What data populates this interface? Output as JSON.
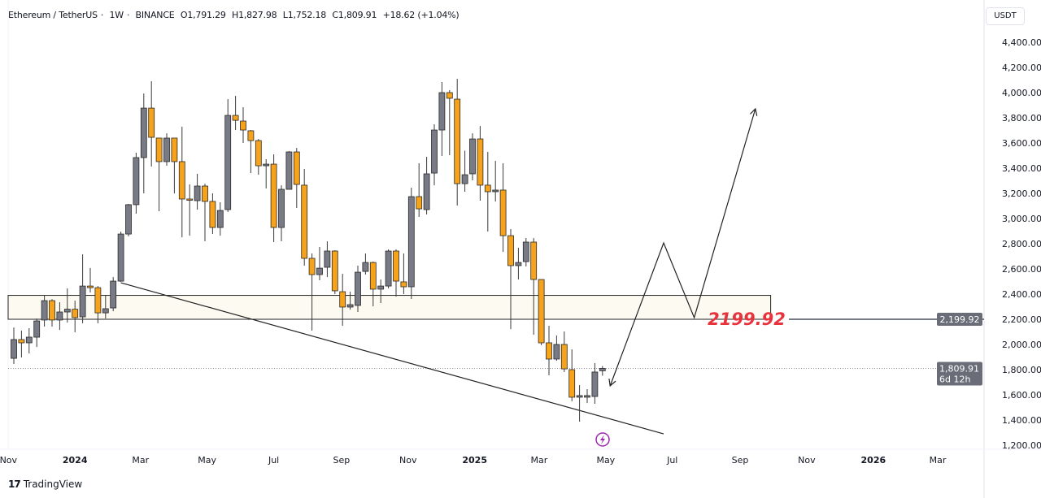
{
  "legend": {
    "symbol": "Ethereum / TetherUS",
    "interval": "1W",
    "exchange": "BINANCE",
    "open": "O1,791.29",
    "high": "H1,827.98",
    "low": "L1,752.18",
    "close": "C1,809.91",
    "change": "+18.62 (+1.04%)"
  },
  "currency": "USDT",
  "brand": "TradingView",
  "colors": {
    "up": "#787b86",
    "down": "#f7a21b",
    "annotation": "#e8323c",
    "zone": "#fdfaf2",
    "accent_icon": "#9c27b0"
  },
  "chart_data": {
    "type": "candlestick",
    "title": "",
    "ylim": [
      1100,
      4500
    ],
    "yticks": [
      "4,400.00",
      "4,200.00",
      "4,000.00",
      "3,800.00",
      "3,600.00",
      "3,400.00",
      "3,200.00",
      "3,000.00",
      "2,800.00",
      "2,600.00",
      "2,400.00",
      "2,200.00",
      "2,000.00",
      "1,800.00",
      "1,600.00",
      "1,400.00",
      "1,200.00"
    ],
    "ytick_values": [
      4400,
      4200,
      4000,
      3800,
      3600,
      3400,
      3200,
      3000,
      2800,
      2600,
      2400,
      2200,
      2000,
      1800,
      1600,
      1400,
      1200
    ],
    "xticks": [
      {
        "label": "Nov",
        "date": "2023-11-01",
        "bold": false
      },
      {
        "label": "2024",
        "date": "2024-01-01",
        "bold": true
      },
      {
        "label": "Mar",
        "date": "2024-03-01",
        "bold": false
      },
      {
        "label": "May",
        "date": "2024-05-01",
        "bold": false
      },
      {
        "label": "Jul",
        "date": "2024-07-01",
        "bold": false
      },
      {
        "label": "Sep",
        "date": "2024-09-01",
        "bold": false
      },
      {
        "label": "Nov",
        "date": "2024-11-01",
        "bold": false
      },
      {
        "label": "2025",
        "date": "2025-01-01",
        "bold": true
      },
      {
        "label": "Mar",
        "date": "2025-03-01",
        "bold": false
      },
      {
        "label": "May",
        "date": "2025-05-01",
        "bold": false
      },
      {
        "label": "Jul",
        "date": "2025-07-01",
        "bold": false
      },
      {
        "label": "Sep",
        "date": "2025-09-01",
        "bold": false
      },
      {
        "label": "Nov",
        "date": "2025-11-01",
        "bold": false
      },
      {
        "label": "2026",
        "date": "2026-01-01",
        "bold": true
      },
      {
        "label": "Mar",
        "date": "2026-03-01",
        "bold": false
      }
    ],
    "candles_columns": [
      "date",
      "open",
      "high",
      "low",
      "close"
    ],
    "candles": [
      [
        "2023-11-06",
        1890,
        2135,
        1845,
        2039
      ],
      [
        "2023-11-13",
        2039,
        2110,
        1897,
        2013
      ],
      [
        "2023-11-20",
        2013,
        2129,
        1929,
        2058
      ],
      [
        "2023-11-27",
        2058,
        2206,
        1980,
        2187
      ],
      [
        "2023-12-04",
        2194,
        2393,
        2142,
        2348
      ],
      [
        "2023-12-11",
        2348,
        2360,
        2142,
        2194
      ],
      [
        "2023-12-18",
        2194,
        2335,
        2116,
        2258
      ],
      [
        "2023-12-25",
        2258,
        2445,
        2174,
        2280
      ],
      [
        "2024-01-01",
        2280,
        2348,
        2097,
        2213
      ],
      [
        "2024-01-08",
        2219,
        2716,
        2168,
        2464
      ],
      [
        "2024-01-15",
        2464,
        2607,
        2413,
        2451
      ],
      [
        "2024-01-22",
        2451,
        2464,
        2168,
        2251
      ],
      [
        "2024-01-29",
        2251,
        2387,
        2206,
        2284
      ],
      [
        "2024-02-05",
        2290,
        2535,
        2264,
        2503
      ],
      [
        "2024-02-12",
        2503,
        2896,
        2497,
        2877
      ],
      [
        "2024-02-19",
        2877,
        3116,
        2858,
        3110
      ],
      [
        "2024-02-26",
        3110,
        3523,
        3039,
        3484
      ],
      [
        "2024-03-04",
        3484,
        3993,
        3200,
        3877
      ],
      [
        "2024-03-11",
        3877,
        4090,
        3413,
        3645
      ],
      [
        "2024-03-18",
        3639,
        3639,
        3058,
        3452
      ],
      [
        "2024-03-25",
        3452,
        3677,
        3419,
        3639
      ],
      [
        "2024-04-01",
        3639,
        3639,
        3200,
        3452
      ],
      [
        "2024-04-08",
        3452,
        3729,
        2851,
        3155
      ],
      [
        "2024-04-15",
        3155,
        3271,
        2864,
        3148
      ],
      [
        "2024-04-22",
        3142,
        3355,
        3071,
        3258
      ],
      [
        "2024-04-29",
        3258,
        3277,
        2819,
        3136
      ],
      [
        "2024-05-06",
        3136,
        3200,
        2877,
        2929
      ],
      [
        "2024-05-13",
        2929,
        3129,
        2864,
        3064
      ],
      [
        "2024-05-20",
        3071,
        3948,
        3052,
        3819
      ],
      [
        "2024-05-27",
        3819,
        3974,
        3703,
        3780
      ],
      [
        "2024-06-03",
        3774,
        3884,
        3600,
        3703
      ],
      [
        "2024-06-10",
        3697,
        3703,
        3361,
        3619
      ],
      [
        "2024-06-17",
        3619,
        3632,
        3348,
        3419
      ],
      [
        "2024-06-24",
        3419,
        3471,
        3239,
        3432
      ],
      [
        "2024-07-01",
        3432,
        3510,
        2813,
        2929
      ],
      [
        "2024-07-08",
        2929,
        3264,
        2819,
        3232
      ],
      [
        "2024-07-15",
        3232,
        3535,
        3232,
        3529
      ],
      [
        "2024-07-22",
        3529,
        3561,
        3084,
        3271
      ],
      [
        "2024-07-29",
        3265,
        3394,
        2626,
        2684
      ],
      [
        "2024-08-05",
        2684,
        2723,
        2110,
        2555
      ],
      [
        "2024-08-12",
        2555,
        2774,
        2510,
        2606
      ],
      [
        "2024-08-19",
        2613,
        2819,
        2535,
        2742
      ],
      [
        "2024-08-26",
        2742,
        2748,
        2400,
        2426
      ],
      [
        "2024-09-02",
        2419,
        2561,
        2148,
        2297
      ],
      [
        "2024-09-09",
        2297,
        2419,
        2277,
        2316
      ],
      [
        "2024-09-16",
        2310,
        2626,
        2258,
        2574
      ],
      [
        "2024-09-23",
        2580,
        2723,
        2555,
        2651
      ],
      [
        "2024-09-30",
        2651,
        2658,
        2303,
        2439
      ],
      [
        "2024-10-07",
        2439,
        2516,
        2329,
        2464
      ],
      [
        "2024-10-14",
        2464,
        2755,
        2445,
        2742
      ],
      [
        "2024-10-21",
        2742,
        2755,
        2380,
        2503
      ],
      [
        "2024-10-28",
        2497,
        2723,
        2400,
        2458
      ],
      [
        "2024-11-04",
        2458,
        3245,
        2361,
        3174
      ],
      [
        "2024-11-11",
        3174,
        3439,
        3013,
        3077
      ],
      [
        "2024-11-18",
        3071,
        3490,
        3032,
        3355
      ],
      [
        "2024-11-25",
        3361,
        3748,
        3264,
        3703
      ],
      [
        "2024-12-02",
        3703,
        4084,
        3497,
        4000
      ],
      [
        "2024-12-09",
        4000,
        4020,
        3503,
        3955
      ],
      [
        "2024-12-16",
        3948,
        4110,
        3103,
        3277
      ],
      [
        "2024-12-23",
        3277,
        3539,
        3213,
        3348
      ],
      [
        "2024-12-30",
        3355,
        3677,
        3303,
        3632
      ],
      [
        "2025-01-06",
        3632,
        3735,
        3142,
        3265
      ],
      [
        "2025-01-13",
        3265,
        3529,
        2897,
        3213
      ],
      [
        "2025-01-20",
        3213,
        3458,
        3135,
        3226
      ],
      [
        "2025-01-27",
        3226,
        3439,
        2735,
        2864
      ],
      [
        "2025-02-03",
        2864,
        2916,
        2122,
        2626
      ],
      [
        "2025-02-10",
        2626,
        2768,
        2516,
        2651
      ],
      [
        "2025-02-17",
        2658,
        2845,
        2619,
        2813
      ],
      [
        "2025-02-24",
        2813,
        2845,
        2077,
        2516
      ],
      [
        "2025-03-03",
        2516,
        2516,
        1994,
        2013
      ],
      [
        "2025-03-10",
        2013,
        2148,
        1755,
        1884
      ],
      [
        "2025-03-17",
        1884,
        2071,
        1871,
        2000
      ],
      [
        "2025-03-24",
        2000,
        2103,
        1781,
        1806
      ],
      [
        "2025-03-31",
        1800,
        1961,
        1548,
        1581
      ],
      [
        "2025-04-07",
        1581,
        1677,
        1387,
        1594
      ],
      [
        "2025-04-14",
        1581,
        1645,
        1535,
        1594
      ],
      [
        "2025-04-21",
        1587,
        1852,
        1529,
        1781
      ],
      [
        "2025-04-28",
        1791,
        1828,
        1752,
        1810
      ]
    ],
    "last_price": {
      "value": "1,809.91",
      "countdown": "6d 12h"
    },
    "drawings": {
      "zone": {
        "from": "2023-10-30",
        "to": "2025-09-29",
        "low": 2200,
        "high": 2390
      },
      "level": {
        "price": 2199.92,
        "label": "2199.92",
        "axis_label": "2,199.92",
        "from": "2025-09-29"
      },
      "trendline": [
        [
          "2024-02-12",
          2490
        ],
        [
          "2025-06-23",
          1290
        ]
      ],
      "projection_path": [
        [
          "2025-05-05",
          1671
        ],
        [
          "2025-06-23",
          2806
        ],
        [
          "2025-07-21",
          2213
        ],
        [
          "2025-09-15",
          3871
        ]
      ]
    }
  }
}
